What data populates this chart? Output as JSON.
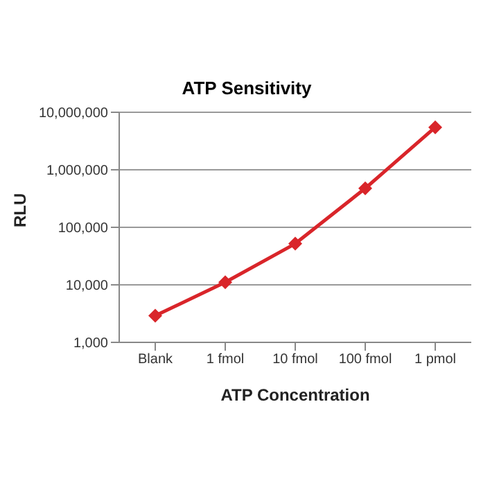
{
  "chart_data": {
    "type": "line",
    "title": "ATP Sensitivity",
    "xlabel": "ATP Concentration",
    "ylabel": "RLU",
    "categories": [
      "Blank",
      "1 fmol",
      "10 fmol",
      "100 fmol",
      "1 pmol"
    ],
    "series": [
      {
        "color": "#d9252a",
        "values": [
          2900,
          11100,
          52000,
          476000,
          5480000
        ]
      }
    ],
    "log": "y",
    "ylim": [
      1000,
      10000000
    ],
    "yticks": [
      {
        "value": 1000,
        "label": "1,000"
      },
      {
        "value": 10000,
        "label": "10,000"
      },
      {
        "value": 100000,
        "label": "100,000"
      },
      {
        "value": 1000000,
        "label": "1,000,000"
      },
      {
        "value": 10000000,
        "label": "10,000,000"
      }
    ],
    "grid": "y",
    "marker": "diamond",
    "line_style": "solid"
  }
}
